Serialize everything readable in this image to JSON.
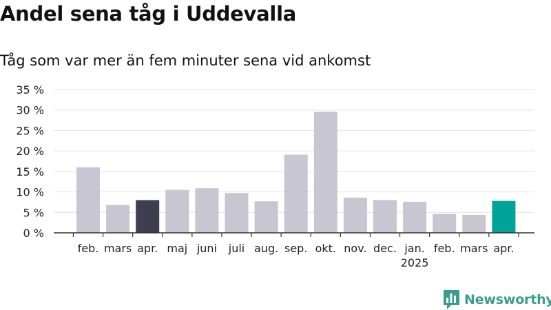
{
  "header": {
    "title": "Andel sena tåg i Uddevalla",
    "subtitle": "Tåg som var mer än fem minuter sena vid ankomst"
  },
  "brand": {
    "name": "Newsworthy",
    "icon": "newsworthy-logo-icon"
  },
  "colors": {
    "default_bar": "#c7c6d1",
    "highlight_dark": "#3f3e4f",
    "highlight_accent": "#00a398",
    "grid": "#e2e2e2",
    "axis": "#333333"
  },
  "chart_data": {
    "type": "bar",
    "title": "Andel sena tåg i Uddevalla",
    "subtitle": "Tåg som var mer än fem minuter sena vid ankomst",
    "categories": [
      "feb.",
      "mars",
      "apr.",
      "maj",
      "juni",
      "juli",
      "aug.",
      "sep.",
      "okt.",
      "nov.",
      "dec.",
      "jan.",
      "feb.",
      "mars",
      "apr."
    ],
    "year_labels": [
      {
        "index": 11,
        "label": "2025"
      }
    ],
    "series": [
      {
        "values": [
          16.0,
          6.8,
          8.0,
          10.5,
          10.9,
          9.7,
          7.7,
          19.1,
          29.6,
          8.6,
          8.0,
          7.6,
          4.6,
          4.4,
          7.8
        ],
        "colors": [
          "default_bar",
          "default_bar",
          "highlight_dark",
          "default_bar",
          "default_bar",
          "default_bar",
          "default_bar",
          "default_bar",
          "default_bar",
          "default_bar",
          "default_bar",
          "default_bar",
          "default_bar",
          "default_bar",
          "highlight_accent"
        ]
      }
    ],
    "ylim": [
      0,
      35
    ],
    "yticks": [
      0,
      5,
      10,
      15,
      20,
      25,
      30,
      35
    ],
    "ytick_labels": [
      "0 %",
      "5 %",
      "10 %",
      "15 %",
      "20 %",
      "25 %",
      "30 %",
      "35 %"
    ],
    "xlabel": "",
    "ylabel": "",
    "grid": true,
    "legend": "none"
  }
}
